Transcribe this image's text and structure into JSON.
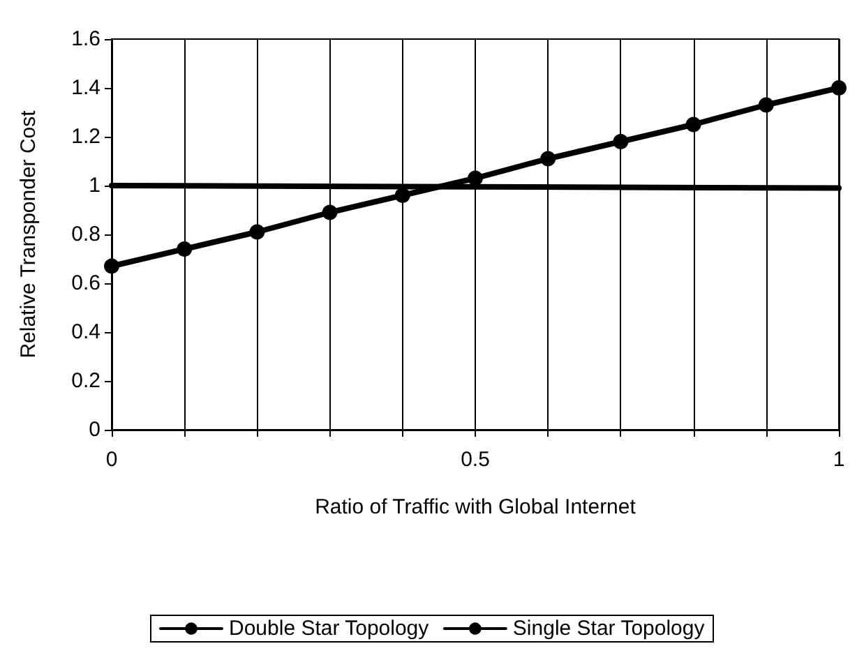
{
  "chart_data": {
    "type": "line",
    "xlabel": "Ratio of Traffic with Global Internet",
    "ylabel": "Relative Transponder Cost",
    "xlim": [
      0,
      1
    ],
    "ylim": [
      0,
      1.6
    ],
    "xticks": [
      0,
      {
        "value": 0.1,
        "label": null
      },
      {
        "value": 0.2,
        "label": null
      },
      {
        "value": 0.3,
        "label": null
      },
      {
        "value": 0.4,
        "label": null
      },
      0.5,
      {
        "value": 0.6,
        "label": null
      },
      {
        "value": 0.7,
        "label": null
      },
      {
        "value": 0.8,
        "label": null
      },
      {
        "value": 0.9,
        "label": null
      },
      1
    ],
    "yticks": [
      0,
      0.2,
      0.4,
      0.6,
      0.8,
      1,
      1.2,
      1.4,
      1.6
    ],
    "grid": "x",
    "legend": "bottom",
    "line_style": "solid",
    "series": [
      {
        "name": "Double Star Topology",
        "color": "#000000",
        "marker": "circle",
        "x": [
          0,
          0.1,
          0.2,
          0.3,
          0.4,
          0.5,
          0.6,
          0.7,
          0.8,
          0.9,
          1
        ],
        "values": [
          0.67,
          0.74,
          0.81,
          0.89,
          0.96,
          1.03,
          1.11,
          1.18,
          1.25,
          1.33,
          1.4
        ]
      },
      {
        "name": "Single Star Topology",
        "color": "#000000",
        "marker": "none",
        "x": [
          0,
          1
        ],
        "values": [
          1,
          0.99
        ]
      }
    ]
  }
}
